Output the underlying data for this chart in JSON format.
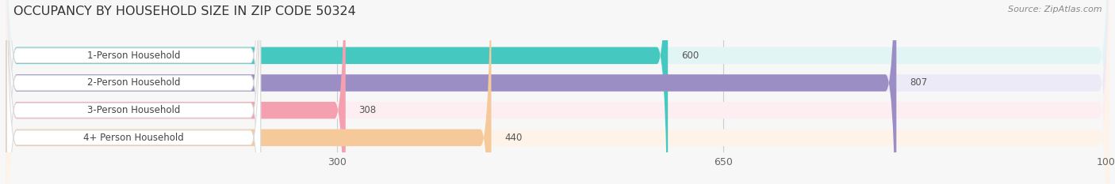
{
  "title": "OCCUPANCY BY HOUSEHOLD SIZE IN ZIP CODE 50324",
  "source": "Source: ZipAtlas.com",
  "categories": [
    "1-Person Household",
    "2-Person Household",
    "3-Person Household",
    "4+ Person Household"
  ],
  "values": [
    600,
    807,
    308,
    440
  ],
  "bar_colors": [
    "#45C8BF",
    "#9B8EC4",
    "#F4A0B0",
    "#F5C99A"
  ],
  "bg_colors": [
    "#E0F5F4",
    "#EDEAF8",
    "#FDEEF2",
    "#FDF3E8"
  ],
  "xlim": [
    0,
    1000
  ],
  "xticks": [
    300,
    650,
    1000
  ],
  "title_fontsize": 11.5,
  "bar_height": 0.62,
  "figsize": [
    14.06,
    2.33
  ],
  "dpi": 100
}
